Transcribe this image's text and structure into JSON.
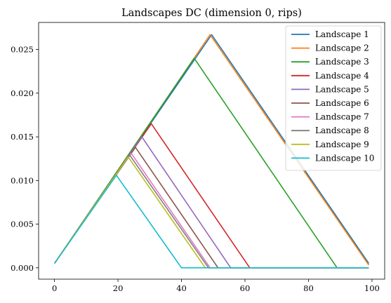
{
  "chart_data": {
    "type": "line",
    "title": "Landscapes DC (dimension 0, rips)",
    "xlabel": "",
    "ylabel": "",
    "xlim": [
      -5,
      104
    ],
    "ylim": [
      -0.0013,
      0.0281
    ],
    "xticks": [
      0,
      20,
      40,
      60,
      80,
      100
    ],
    "xtick_labels": [
      "0",
      "20",
      "40",
      "60",
      "80",
      "100"
    ],
    "yticks": [
      0.0,
      0.005,
      0.01,
      0.015,
      0.02,
      0.025
    ],
    "ytick_labels": [
      "0.000",
      "0.005",
      "0.010",
      "0.015",
      "0.020",
      "0.025"
    ],
    "grid": false,
    "legend_position": "top-right",
    "series": [
      {
        "name": "Landscape 1",
        "color": "#1f77b4",
        "x": [
          0,
          49.5,
          99
        ],
        "y": [
          0.0005,
          0.0267,
          0.0005
        ]
      },
      {
        "name": "Landscape 2",
        "color": "#ff7f0e",
        "x": [
          0,
          49,
          99
        ],
        "y": [
          0.0005,
          0.0267,
          0.0003
        ]
      },
      {
        "name": "Landscape 3",
        "color": "#2ca02c",
        "x": [
          0,
          44,
          89,
          99
        ],
        "y": [
          0.0005,
          0.024,
          0.0,
          0.0
        ]
      },
      {
        "name": "Landscape 4",
        "color": "#d62728",
        "x": [
          0,
          30.5,
          61.5,
          99
        ],
        "y": [
          0.0005,
          0.0165,
          0.0,
          0.0
        ]
      },
      {
        "name": "Landscape 5",
        "color": "#9467bd",
        "x": [
          0,
          27.5,
          55.5,
          99
        ],
        "y": [
          0.0005,
          0.015,
          0.0,
          0.0
        ]
      },
      {
        "name": "Landscape 6",
        "color": "#8c564b",
        "x": [
          0,
          25.5,
          51.5,
          99
        ],
        "y": [
          0.0005,
          0.0138,
          0.0,
          0.0
        ]
      },
      {
        "name": "Landscape 7",
        "color": "#e377c2",
        "x": [
          0,
          24.2,
          49,
          99
        ],
        "y": [
          0.0005,
          0.0131,
          0.0,
          0.0
        ]
      },
      {
        "name": "Landscape 8",
        "color": "#7f7f7f",
        "x": [
          0,
          23.7,
          48.5,
          99
        ],
        "y": [
          0.0005,
          0.0129,
          0.0,
          0.0
        ]
      },
      {
        "name": "Landscape 9",
        "color": "#bcbd22",
        "x": [
          0,
          23.2,
          47.5,
          99
        ],
        "y": [
          0.0005,
          0.0127,
          0.0,
          0.0
        ]
      },
      {
        "name": "Landscape 10",
        "color": "#17becf",
        "x": [
          0,
          19.5,
          40,
          99
        ],
        "y": [
          0.0005,
          0.0106,
          0.0,
          0.0
        ]
      }
    ]
  }
}
